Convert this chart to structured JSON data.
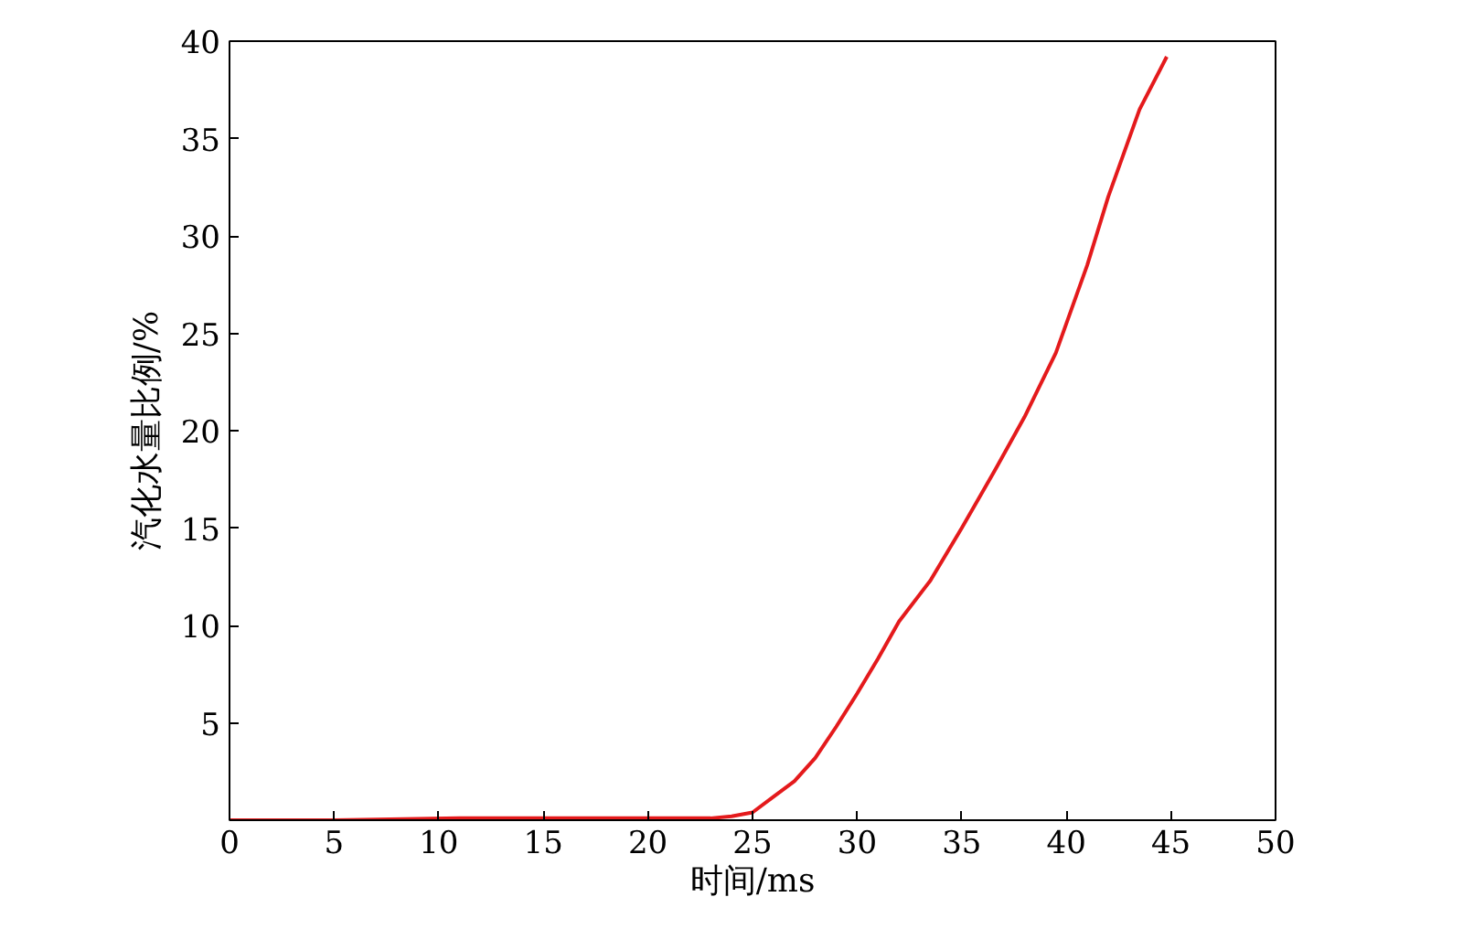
{
  "chart_data": {
    "type": "line",
    "xlabel": "时间/ms",
    "ylabel": "汽化水量比例/%",
    "x": [
      0,
      5,
      11,
      15,
      20,
      23,
      24,
      25,
      26,
      27,
      28,
      29,
      30,
      31,
      32,
      33.5,
      35,
      36.5,
      38,
      39.5,
      41,
      42,
      43.5,
      44.8
    ],
    "series": [
      {
        "color": "#e41a1c",
        "values": [
          0,
          0,
          0.1,
          0.1,
          0.1,
          0.1,
          0.2,
          0.4,
          1.2,
          2,
          3.2,
          4.8,
          6.5,
          8.3,
          10.2,
          12.3,
          15,
          17.8,
          20.7,
          24,
          28.5,
          32,
          36.5,
          39.2
        ]
      }
    ],
    "xlim": [
      0,
      50
    ],
    "ylim": [
      0,
      40
    ],
    "xticks": [
      0,
      5,
      10,
      15,
      20,
      25,
      30,
      35,
      40,
      45,
      50
    ],
    "yticks": [
      5,
      10,
      15,
      20,
      25,
      30,
      35,
      40
    ],
    "grid": false,
    "marker": "none",
    "line_style": "solid"
  }
}
